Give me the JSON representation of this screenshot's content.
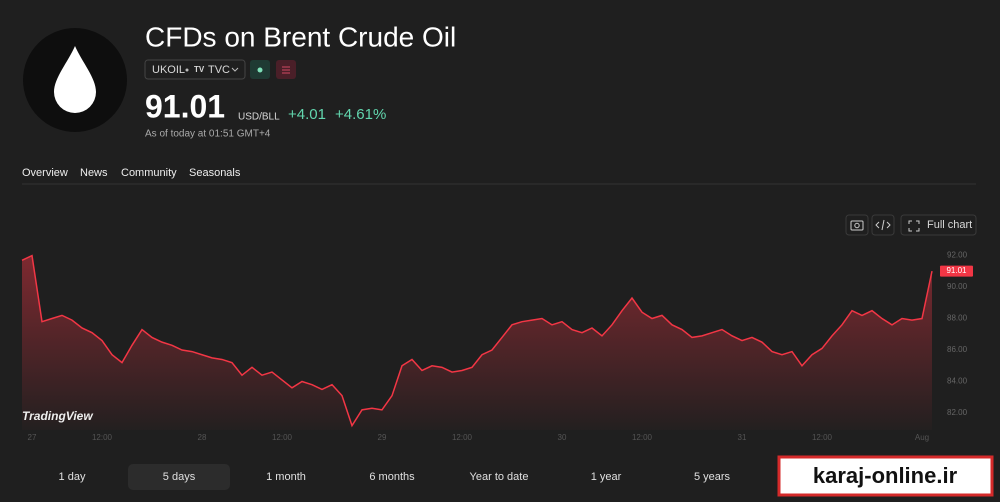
{
  "header": {
    "title": "CFDs on Brent Crude Oil",
    "symbol": "UKOIL",
    "exchange": "TVC",
    "price": "91.01",
    "currency": "USD/BLL",
    "change": "+4.01",
    "change_percent": "+4.61%",
    "timestamp": "As of today at 01:51 GMT+4"
  },
  "tabs": [
    "Overview",
    "News",
    "Community",
    "Seasonals"
  ],
  "toolbar": {
    "full_chart": "Full chart"
  },
  "logo": "TradingView",
  "chart_data": {
    "type": "area",
    "color": "#f23645",
    "grid": false,
    "categories": [
      null,
      "27",
      null,
      null,
      null,
      null,
      null,
      null,
      "12:00",
      null,
      null,
      null,
      null,
      null,
      null,
      null,
      null,
      null,
      "28",
      null,
      null,
      null,
      null,
      null,
      null,
      null,
      "12:00",
      null,
      null,
      null,
      null,
      null,
      null,
      null,
      null,
      null,
      "29",
      null,
      null,
      null,
      null,
      null,
      null,
      null,
      "12:00",
      null,
      null,
      null,
      null,
      null,
      null,
      null,
      null,
      null,
      "30",
      null,
      null,
      null,
      null,
      null,
      null,
      null,
      "12:00",
      null,
      null,
      null,
      null,
      null,
      null,
      null,
      null,
      null,
      "31",
      null,
      null,
      null,
      null,
      null,
      null,
      null,
      "12:00",
      null,
      null,
      null,
      null,
      null,
      null,
      null,
      null,
      null,
      "Aug",
      null
    ],
    "values": [
      91.7,
      92.0,
      87.8,
      88.0,
      88.2,
      87.9,
      87.4,
      87.1,
      86.6,
      85.7,
      85.2,
      86.3,
      87.3,
      86.8,
      86.5,
      86.3,
      86.0,
      85.9,
      85.7,
      85.5,
      85.4,
      85.2,
      84.4,
      84.9,
      84.4,
      84.6,
      84.1,
      83.6,
      84.0,
      83.8,
      83.5,
      83.8,
      83.1,
      81.2,
      82.2,
      82.3,
      82.2,
      83.1,
      85.0,
      85.4,
      84.7,
      85.0,
      84.9,
      84.6,
      84.7,
      84.9,
      85.7,
      86.0,
      86.8,
      87.6,
      87.8,
      87.9,
      88.0,
      87.6,
      87.8,
      87.3,
      87.1,
      87.4,
      86.9,
      87.6,
      88.5,
      89.3,
      88.4,
      88.0,
      88.2,
      87.6,
      87.3,
      86.8,
      86.9,
      87.1,
      87.3,
      86.9,
      86.6,
      86.8,
      86.5,
      85.9,
      85.7,
      85.9,
      85.0,
      85.7,
      86.1,
      86.9,
      87.6,
      88.5,
      88.2,
      88.5,
      88.0,
      87.6,
      88.0,
      87.9,
      88.0,
      91.01
    ],
    "ylim": [
      80.92,
      92.67
    ],
    "yticks": [
      {
        "value": 82,
        "label": "82.00"
      },
      {
        "value": 84,
        "label": "84.00"
      },
      {
        "value": 86,
        "label": "86.00"
      },
      {
        "value": 88,
        "label": "88.00"
      },
      {
        "value": 90,
        "label": "90.00"
      },
      {
        "value": 92,
        "label": "92.00"
      }
    ]
  },
  "ranges": [
    "1 day",
    "5 days",
    "1 month",
    "6 months",
    "Year to date",
    "1 year",
    "5 years"
  ],
  "selected_range": 1,
  "watermark": "karaj-online.ir"
}
